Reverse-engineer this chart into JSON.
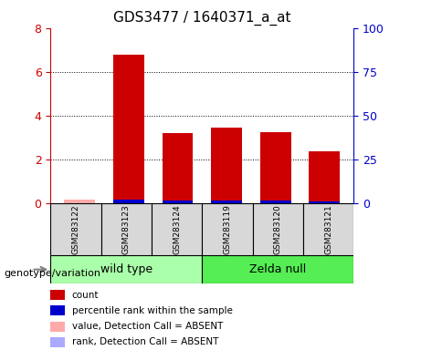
{
  "title": "GDS3477 / 1640371_a_at",
  "samples": [
    "GSM283122",
    "GSM283123",
    "GSM283124",
    "GSM283119",
    "GSM283120",
    "GSM283121"
  ],
  "groups": [
    "wild type",
    "wild type",
    "wild type",
    "Zelda null",
    "Zelda null",
    "Zelda null"
  ],
  "count_values": [
    0.15,
    6.8,
    3.2,
    3.45,
    3.25,
    2.35
  ],
  "rank_values": [
    0.0,
    2.05,
    1.25,
    1.45,
    1.45,
    1.1
  ],
  "absent_mask": [
    true,
    false,
    false,
    false,
    false,
    false
  ],
  "count_color": "#cc0000",
  "rank_color": "#0000cc",
  "absent_count_color": "#ffaaaa",
  "absent_rank_color": "#aaaaff",
  "group_colors": [
    "#aaffaa",
    "#55dd55"
  ],
  "group_names": [
    "wild type",
    "Zelda null"
  ],
  "ylim_left": [
    0,
    8
  ],
  "ylim_right": [
    0,
    100
  ],
  "yticks_left": [
    0,
    2,
    4,
    6,
    8
  ],
  "yticks_right": [
    0,
    25,
    50,
    75,
    100
  ],
  "bar_width": 0.35,
  "background_color": "#ffffff",
  "plot_bg_color": "#ffffff",
  "legend_items": [
    {
      "label": "count",
      "color": "#cc0000",
      "marker": "s"
    },
    {
      "label": "percentile rank within the sample",
      "color": "#0000cc",
      "marker": "s"
    },
    {
      "label": "value, Detection Call = ABSENT",
      "color": "#ffaaaa",
      "marker": "s"
    },
    {
      "label": "rank, Detection Call = ABSENT",
      "color": "#aaaaff",
      "marker": "s"
    }
  ],
  "genotype_label": "genotype/variation",
  "left_axis_color": "#cc0000",
  "right_axis_color": "#0000cc"
}
